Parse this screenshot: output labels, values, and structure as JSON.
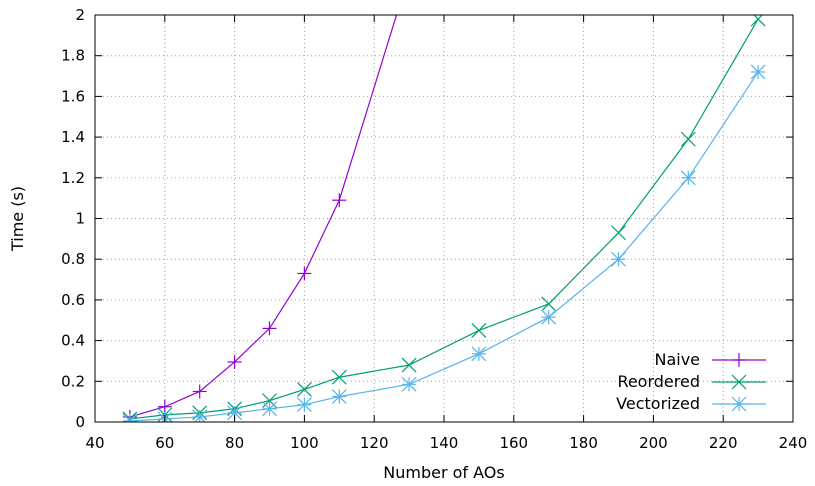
{
  "chart_data": {
    "type": "line",
    "title": "",
    "xlabel": "Number of AOs",
    "ylabel": "Time (s)",
    "xlim": [
      40,
      240
    ],
    "ylim": [
      0,
      2
    ],
    "xticks": [
      40,
      60,
      80,
      100,
      120,
      140,
      160,
      180,
      200,
      220,
      240
    ],
    "yticks": [
      0,
      0.2,
      0.4,
      0.6,
      0.8,
      1,
      1.2,
      1.4,
      1.6,
      1.8,
      2
    ],
    "ytick_labels": [
      "0",
      "0.2",
      "0.4",
      "0.6",
      "0.8",
      "1",
      "1.2",
      "1.4",
      "1.6",
      "1.8",
      "2"
    ],
    "xtick_labels": [
      "40",
      "60",
      "80",
      "100",
      "120",
      "140",
      "160",
      "180",
      "200",
      "220",
      "240"
    ],
    "grid": true,
    "legend_position": "bottom-right",
    "series": [
      {
        "name": "Naive",
        "color": "#9400d3",
        "marker": "plus",
        "x": [
          50,
          60,
          70,
          80,
          90,
          100,
          110,
          130
        ],
        "y": [
          0.025,
          0.075,
          0.15,
          0.295,
          0.46,
          0.73,
          1.09,
          2.2
        ]
      },
      {
        "name": "Reordered",
        "color": "#009e73",
        "marker": "cross",
        "x": [
          50,
          60,
          70,
          80,
          90,
          100,
          110,
          130,
          150,
          170,
          190,
          210,
          230
        ],
        "y": [
          0.015,
          0.035,
          0.045,
          0.065,
          0.105,
          0.16,
          0.22,
          0.28,
          0.45,
          0.58,
          0.93,
          1.39,
          1.98
        ]
      },
      {
        "name": "Vectorized",
        "color": "#56b4e9",
        "marker": "star",
        "x": [
          50,
          60,
          70,
          80,
          90,
          100,
          110,
          130,
          150,
          170,
          190,
          210,
          230
        ],
        "y": [
          0.005,
          0.015,
          0.025,
          0.045,
          0.065,
          0.085,
          0.125,
          0.185,
          0.335,
          0.515,
          0.8,
          1.2,
          1.72
        ]
      }
    ]
  }
}
